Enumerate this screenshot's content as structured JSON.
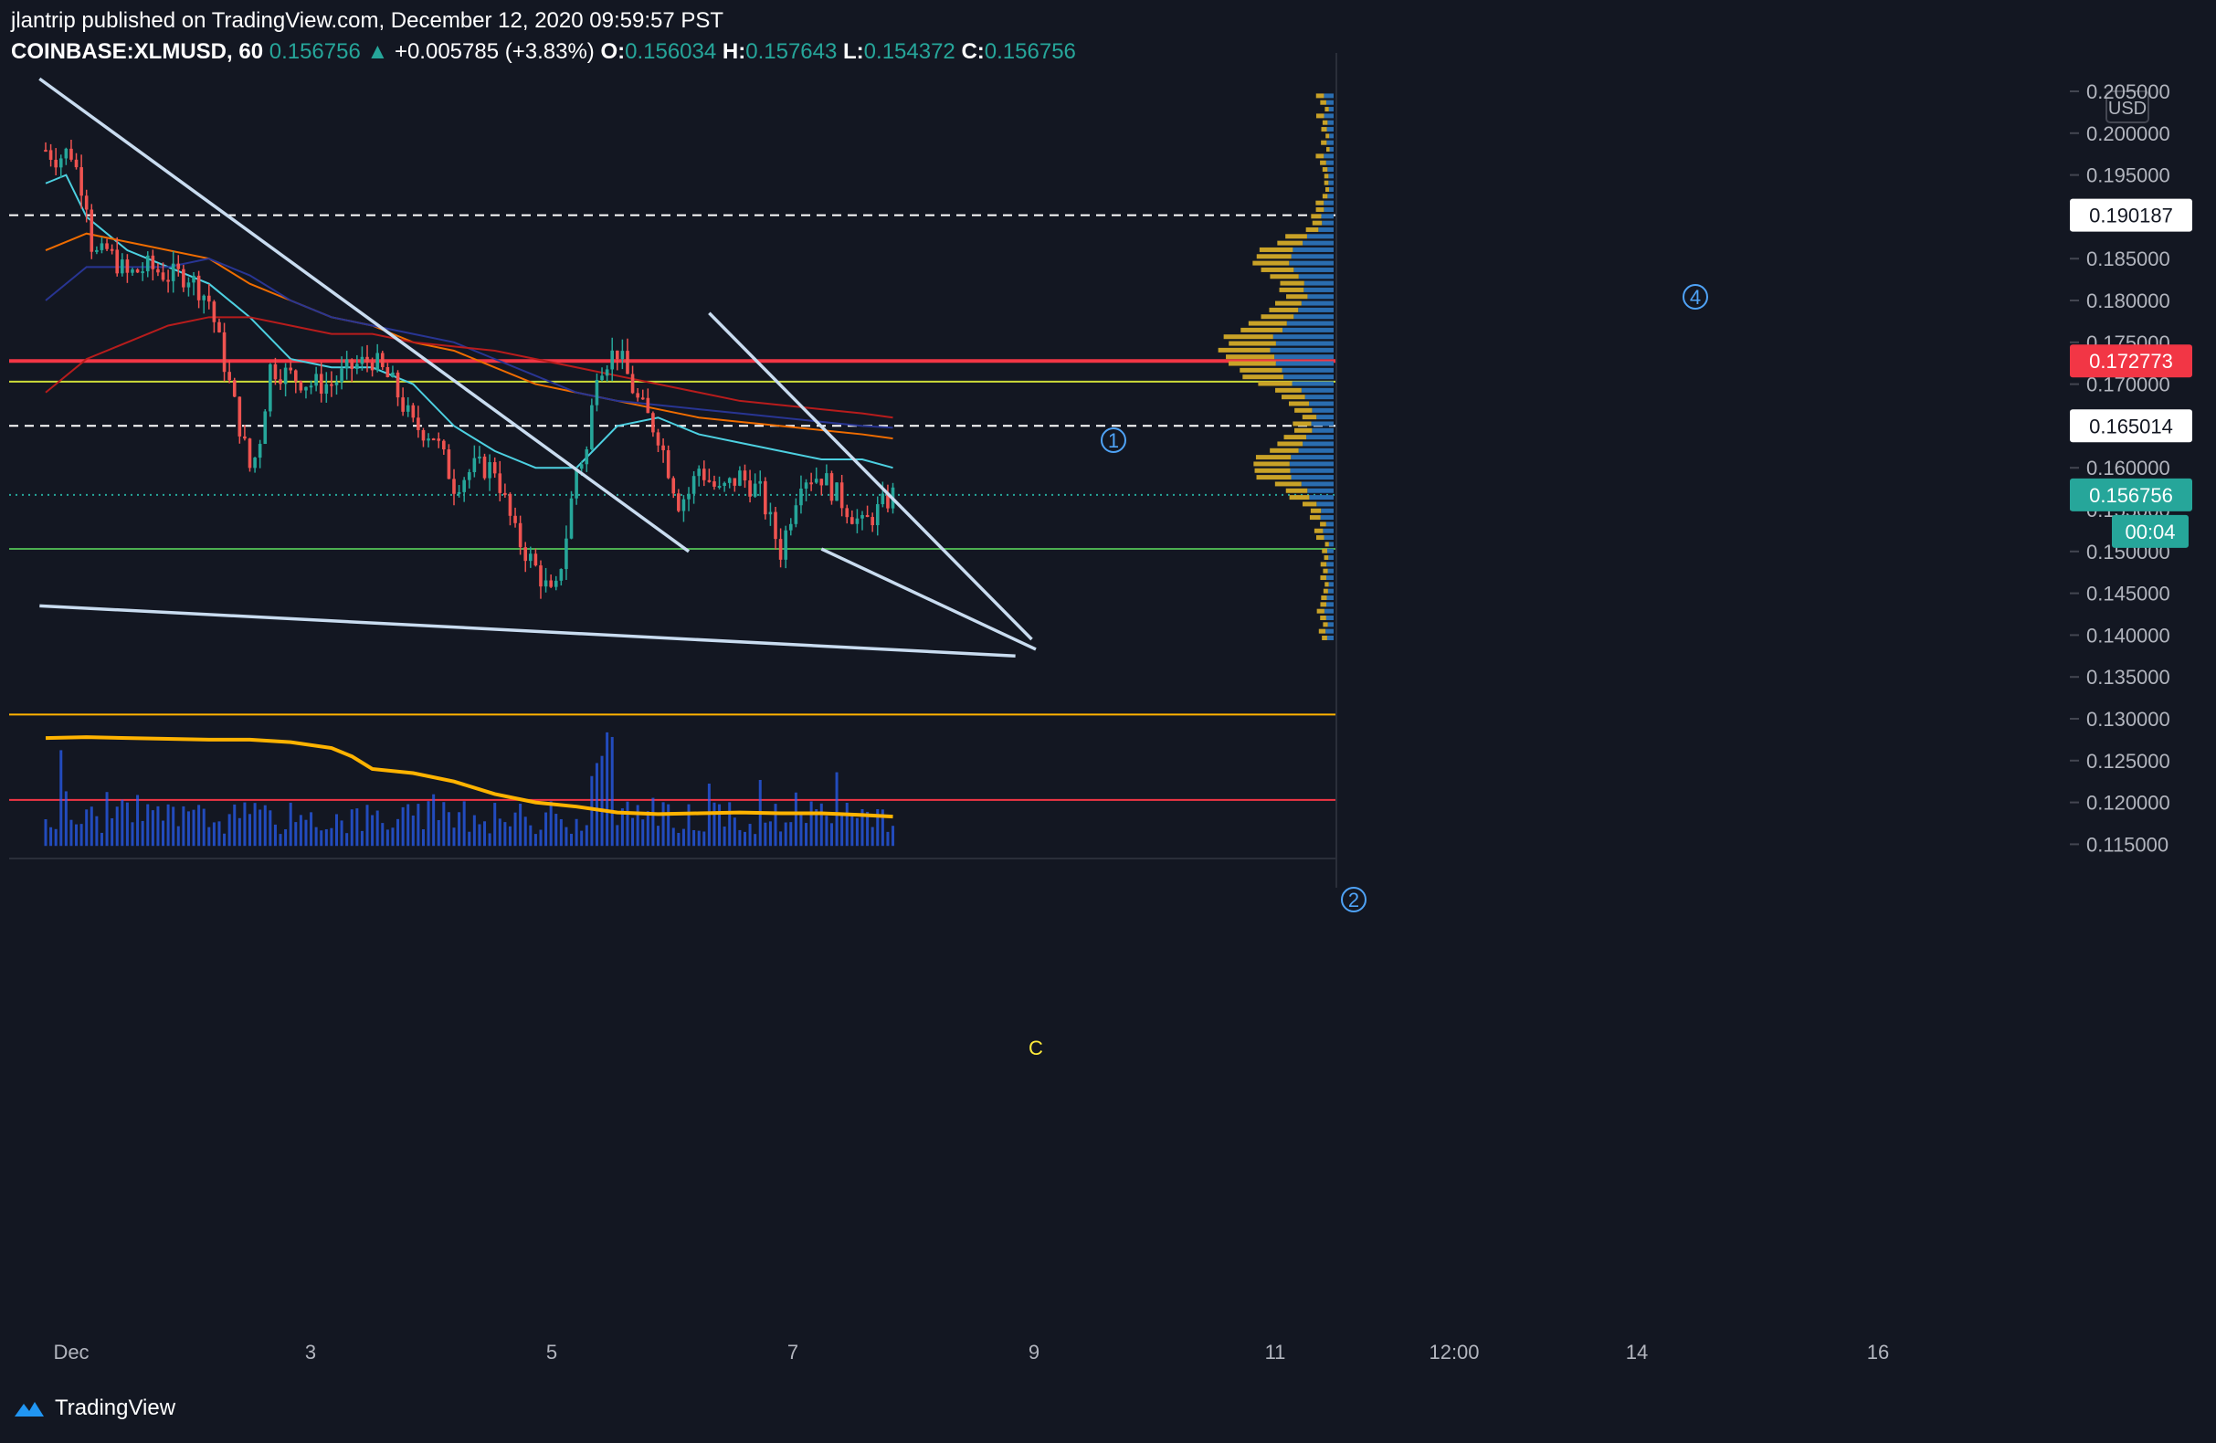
{
  "header": {
    "published": "jlantrip published on TradingView.com, December 12, 2020 09:59:57 PST",
    "symbol": "COINBASE:XLMUSD, 60",
    "price": "0.156756",
    "arrow": "▲",
    "change": "+0.005785 (+3.83%)",
    "o_label": "O:",
    "o_value": "0.156034",
    "h_label": "H:",
    "h_value": "0.157643",
    "l_label": "L:",
    "l_value": "0.154372",
    "c_label": "C:",
    "c_value": "0.156756"
  },
  "footer": {
    "brand": "TradingView"
  },
  "colors": {
    "background": "#131722",
    "up": "#26a69a",
    "down": "#ef5350",
    "trendline": "#c9dcf0",
    "resistance_red": "#f23645",
    "level_green": "#4caf50",
    "level_yellow": "#cddc39",
    "volume": "#2962ff",
    "volume_ma": "#ffb300",
    "profile_blue": "#2a6db0",
    "profile_gold": "#c9a227"
  },
  "chart_data": {
    "type": "candlestick",
    "currency_label": "USD",
    "y_ticks": [
      "0.205000",
      "0.200000",
      "0.195000",
      "0.190000",
      "0.185000",
      "0.180000",
      "0.175000",
      "0.170000",
      "0.165000",
      "0.160000",
      "0.155000",
      "0.150000",
      "0.145000",
      "0.140000",
      "0.135000",
      "0.130000",
      "0.125000",
      "0.120000",
      "0.115000"
    ],
    "ylim": [
      0.1135,
      0.2085
    ],
    "x_ticks": [
      "Dec",
      "3",
      "5",
      "7",
      "9",
      "11",
      "12:00",
      "14",
      "16"
    ],
    "price_tags": [
      {
        "value": "0.190187",
        "style": "white"
      },
      {
        "value": "0.172773",
        "style": "red"
      },
      {
        "value": "0.165014",
        "style": "white"
      },
      {
        "value": "0.156756",
        "style": "green"
      },
      {
        "value": "00:04",
        "style": "green"
      }
    ],
    "horizontal_levels": [
      {
        "y": 0.190187,
        "style": "dashed",
        "color": "#ffffff"
      },
      {
        "y": 0.172773,
        "style": "solid",
        "color": "#f23645"
      },
      {
        "y": 0.1703,
        "style": "solid",
        "color": "#cddc39"
      },
      {
        "y": 0.165014,
        "style": "dashed",
        "color": "#ffffff"
      },
      {
        "y": 0.156756,
        "style": "dotted",
        "color": "#26a69a"
      },
      {
        "y": 0.1503,
        "style": "solid",
        "color": "#4caf50"
      },
      {
        "y": 0.1305,
        "style": "solid",
        "color": "#ffb300"
      },
      {
        "y": 0.1203,
        "style": "solid",
        "color": "#f23645"
      }
    ],
    "wave_labels": [
      "1",
      "2",
      "4",
      "C"
    ],
    "price_path": [
      [
        0,
        0.198
      ],
      [
        0.6,
        0.197
      ],
      [
        1.2,
        0.198
      ],
      [
        2,
        0.192
      ],
      [
        2.2,
        0.187
      ],
      [
        2.6,
        0.185
      ],
      [
        3,
        0.186
      ],
      [
        4,
        0.183
      ],
      [
        5,
        0.184
      ],
      [
        6,
        0.183
      ],
      [
        7,
        0.183
      ],
      [
        8,
        0.18
      ],
      [
        9,
        0.17
      ],
      [
        9.5,
        0.165
      ],
      [
        10,
        0.16
      ],
      [
        10.4,
        0.162
      ],
      [
        11,
        0.172
      ],
      [
        12,
        0.171
      ],
      [
        13,
        0.17
      ],
      [
        14,
        0.17
      ],
      [
        15,
        0.172
      ],
      [
        16,
        0.173
      ],
      [
        17,
        0.17
      ],
      [
        18,
        0.165
      ],
      [
        19,
        0.164
      ],
      [
        20,
        0.158
      ],
      [
        21,
        0.16
      ],
      [
        22,
        0.16
      ],
      [
        23,
        0.152
      ],
      [
        24,
        0.148
      ],
      [
        24.9,
        0.144
      ],
      [
        25.5,
        0.152
      ],
      [
        26,
        0.16
      ],
      [
        26.5,
        0.162
      ],
      [
        27,
        0.172
      ],
      [
        28,
        0.174
      ],
      [
        29,
        0.168
      ],
      [
        30,
        0.164
      ],
      [
        31,
        0.156
      ],
      [
        31.5,
        0.157
      ],
      [
        32,
        0.16
      ],
      [
        33,
        0.157
      ],
      [
        34,
        0.159
      ],
      [
        35,
        0.157
      ],
      [
        36,
        0.15
      ],
      [
        37,
        0.159
      ],
      [
        38,
        0.159
      ],
      [
        39,
        0.156
      ],
      [
        40,
        0.153
      ],
      [
        41,
        0.1555
      ],
      [
        41.5,
        0.15675
      ]
    ],
    "moving_averages": [
      {
        "color": "#4dd0e1",
        "points": [
          [
            0,
            0.194
          ],
          [
            1,
            0.195
          ],
          [
            2,
            0.19
          ],
          [
            4,
            0.186
          ],
          [
            6,
            0.184
          ],
          [
            8,
            0.182
          ],
          [
            10,
            0.178
          ],
          [
            12,
            0.173
          ],
          [
            14,
            0.172
          ],
          [
            16,
            0.172
          ],
          [
            18,
            0.17
          ],
          [
            20,
            0.165
          ],
          [
            22,
            0.162
          ],
          [
            24,
            0.16
          ],
          [
            26,
            0.16
          ],
          [
            28,
            0.165
          ],
          [
            30,
            0.166
          ],
          [
            32,
            0.164
          ],
          [
            34,
            0.163
          ],
          [
            36,
            0.162
          ],
          [
            38,
            0.161
          ],
          [
            40,
            0.161
          ],
          [
            41.5,
            0.16
          ]
        ]
      },
      {
        "color": "#ef6c00",
        "points": [
          [
            0,
            0.186
          ],
          [
            2,
            0.188
          ],
          [
            4,
            0.187
          ],
          [
            6,
            0.186
          ],
          [
            8,
            0.185
          ],
          [
            10,
            0.182
          ],
          [
            12,
            0.18
          ],
          [
            14,
            0.178
          ],
          [
            16,
            0.177
          ],
          [
            18,
            0.175
          ],
          [
            20,
            0.174
          ],
          [
            22,
            0.172
          ],
          [
            24,
            0.17
          ],
          [
            26,
            0.169
          ],
          [
            28,
            0.168
          ],
          [
            30,
            0.167
          ],
          [
            32,
            0.166
          ],
          [
            34,
            0.1655
          ],
          [
            36,
            0.165
          ],
          [
            38,
            0.1645
          ],
          [
            40,
            0.164
          ],
          [
            41.5,
            0.1635
          ]
        ]
      },
      {
        "color": "#283593",
        "points": [
          [
            0,
            0.18
          ],
          [
            2,
            0.184
          ],
          [
            4,
            0.184
          ],
          [
            6,
            0.184
          ],
          [
            8,
            0.185
          ],
          [
            10,
            0.183
          ],
          [
            12,
            0.18
          ],
          [
            14,
            0.178
          ],
          [
            16,
            0.177
          ],
          [
            18,
            0.176
          ],
          [
            20,
            0.175
          ],
          [
            22,
            0.173
          ],
          [
            24,
            0.171
          ],
          [
            26,
            0.169
          ],
          [
            28,
            0.168
          ],
          [
            30,
            0.1675
          ],
          [
            32,
            0.167
          ],
          [
            34,
            0.1665
          ],
          [
            36,
            0.166
          ],
          [
            38,
            0.1655
          ],
          [
            40,
            0.165
          ],
          [
            41.5,
            0.1648
          ]
        ]
      },
      {
        "color": "#b71c1c",
        "points": [
          [
            0,
            0.169
          ],
          [
            2,
            0.173
          ],
          [
            4,
            0.175
          ],
          [
            6,
            0.177
          ],
          [
            8,
            0.178
          ],
          [
            10,
            0.178
          ],
          [
            12,
            0.177
          ],
          [
            14,
            0.176
          ],
          [
            16,
            0.176
          ],
          [
            18,
            0.175
          ],
          [
            20,
            0.1745
          ],
          [
            22,
            0.174
          ],
          [
            24,
            0.173
          ],
          [
            26,
            0.172
          ],
          [
            28,
            0.171
          ],
          [
            30,
            0.17
          ],
          [
            32,
            0.169
          ],
          [
            34,
            0.168
          ],
          [
            36,
            0.1675
          ],
          [
            38,
            0.167
          ],
          [
            40,
            0.1665
          ],
          [
            41.5,
            0.166
          ]
        ]
      }
    ],
    "trendlines": [
      [
        [
          -0.3,
          0.2065
        ],
        [
          31.5,
          0.15
        ]
      ],
      [
        [
          -0.3,
          0.1435
        ],
        [
          47.5,
          0.1375
        ]
      ],
      [
        [
          32.5,
          0.1785
        ],
        [
          48.3,
          0.1395
        ]
      ],
      [
        [
          38,
          0.1503
        ],
        [
          48.5,
          0.1383
        ]
      ]
    ],
    "volume_ma": [
      [
        0,
        0.1277
      ],
      [
        2,
        0.1278
      ],
      [
        4,
        0.1277
      ],
      [
        6,
        0.1276
      ],
      [
        8,
        0.1275
      ],
      [
        10,
        0.1275
      ],
      [
        12,
        0.1272
      ],
      [
        14,
        0.1265
      ],
      [
        15,
        0.1255
      ],
      [
        16,
        0.124
      ],
      [
        18,
        0.1235
      ],
      [
        20,
        0.1225
      ],
      [
        22,
        0.121
      ],
      [
        24,
        0.12
      ],
      [
        26,
        0.1195
      ],
      [
        28,
        0.1188
      ],
      [
        30,
        0.1186
      ],
      [
        32,
        0.1187
      ],
      [
        34,
        0.1188
      ],
      [
        36,
        0.1187
      ],
      [
        38,
        0.1187
      ],
      [
        40,
        0.1185
      ],
      [
        41.5,
        0.1183
      ]
    ]
  }
}
